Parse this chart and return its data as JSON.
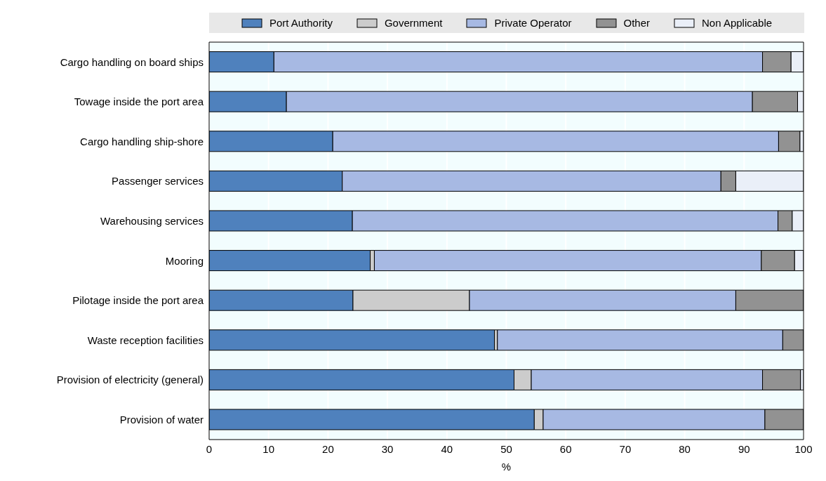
{
  "chart_data": {
    "type": "bar",
    "orientation": "horizontal",
    "stacked": true,
    "xlabel": "%",
    "categories": [
      "Cargo handling on board ships",
      "Towage inside the port area",
      "Cargo handling ship-shore",
      "Passenger services",
      "Warehousing services",
      "Mooring",
      "Pilotage inside the port area",
      "Waste reception facilities",
      "Provision of electricity (general)",
      "Provision of water"
    ],
    "series": [
      {
        "name": "Port Authority",
        "color": "#4f81bd",
        "values": [
          10.9,
          13.0,
          20.8,
          22.4,
          24.1,
          27.1,
          24.2,
          48.0,
          51.3,
          54.7
        ]
      },
      {
        "name": "Government",
        "color": "#cccccc",
        "values": [
          0,
          0,
          0,
          0,
          0,
          0.7,
          19.6,
          0.5,
          2.9,
          1.5
        ]
      },
      {
        "name": "Private Operator",
        "color": "#a7b9e3",
        "values": [
          82.2,
          78.4,
          75.0,
          63.7,
          71.6,
          65.1,
          44.8,
          48.0,
          38.9,
          37.3
        ]
      },
      {
        "name": "Other",
        "color": "#929292",
        "values": [
          4.8,
          7.6,
          3.6,
          2.5,
          2.4,
          5.6,
          11.4,
          3.5,
          6.4,
          6.5
        ]
      },
      {
        "name": "Non Applicable",
        "color": "#eaeff8",
        "values": [
          2.1,
          1.0,
          0.6,
          11.4,
          1.9,
          1.5,
          0,
          0,
          0.5,
          0
        ]
      }
    ],
    "xlim": [
      0,
      100
    ],
    "xticks": [
      0,
      10,
      20,
      30,
      40,
      50,
      60,
      70,
      80,
      90,
      100
    ],
    "grid": "x",
    "legend": "top"
  }
}
